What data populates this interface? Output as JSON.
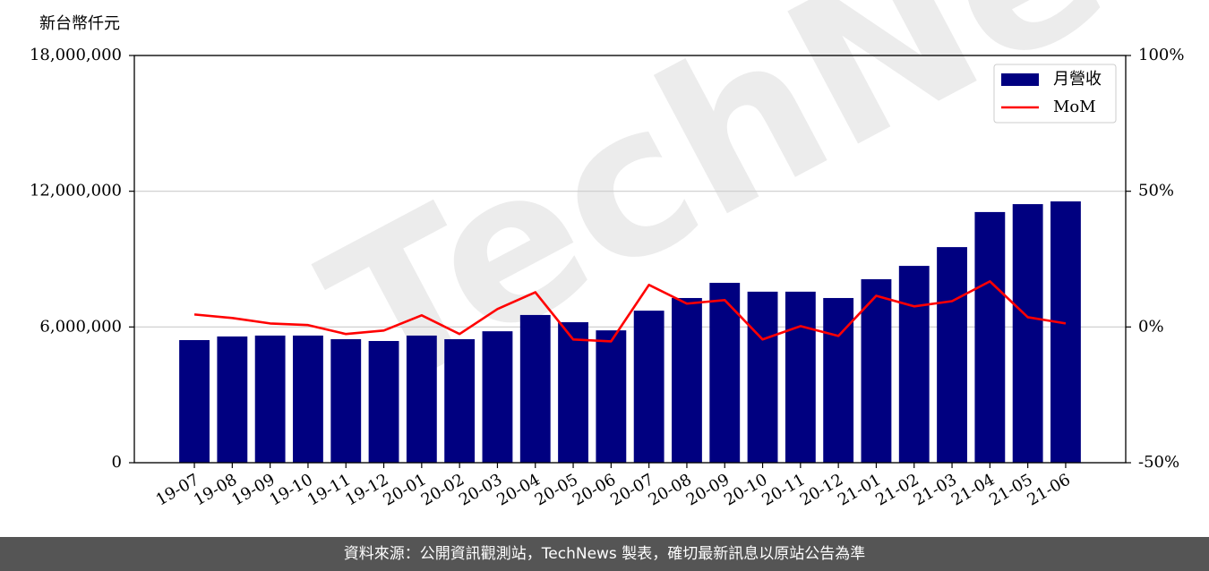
{
  "chart_data": {
    "type": "bar",
    "y_label": "新台幣仟元",
    "watermark": "TechNews",
    "source": "資料來源：公開資訊觀測站，TechNews 製表，確切最新訊息以原站公告為準",
    "categories": [
      "19-07",
      "19-08",
      "19-09",
      "19-10",
      "19-11",
      "19-12",
      "20-01",
      "20-02",
      "20-03",
      "20-04",
      "20-05",
      "20-06",
      "20-07",
      "20-08",
      "20-09",
      "20-10",
      "20-11",
      "20-12",
      "21-01",
      "21-02",
      "21-03",
      "21-04",
      "21-05",
      "21-06"
    ],
    "series": [
      {
        "name": "月營收",
        "type": "bar",
        "color": "#000080",
        "values": [
          5420000,
          5580000,
          5620000,
          5620000,
          5460000,
          5380000,
          5620000,
          5460000,
          5810000,
          6530000,
          6210000,
          5850000,
          6720000,
          7280000,
          7950000,
          7560000,
          7560000,
          7280000,
          8110000,
          8700000,
          9530000,
          11080000,
          11430000,
          11550000
        ]
      },
      {
        "name": "MoM",
        "type": "line",
        "axis": "y2",
        "color": "#ff0000",
        "values": [
          4.6,
          3.3,
          1.3,
          0.7,
          -2.6,
          -1.3,
          4.3,
          -2.6,
          6.6,
          12.8,
          -4.6,
          -5.3,
          15.5,
          8.6,
          9.9,
          -4.6,
          0.3,
          -3.3,
          11.5,
          7.6,
          9.5,
          16.8,
          3.6,
          1.3
        ]
      }
    ],
    "ylim": [
      0,
      18000000
    ],
    "yticks": [
      0,
      {
        "value": 6000000,
        "label": "6,000,000"
      },
      {
        "value": 12000000,
        "label": "12,000,000"
      },
      {
        "value": 18000000,
        "label": "18,000,000"
      }
    ],
    "y2lim": [
      -50,
      100
    ],
    "y2ticks": [
      {
        "value": -50,
        "label": "-50%"
      },
      {
        "value": 0,
        "label": "0%"
      },
      {
        "value": 50,
        "label": "50%"
      },
      {
        "value": 100,
        "label": "100%"
      }
    ],
    "grid": true,
    "legend": "upper right"
  }
}
